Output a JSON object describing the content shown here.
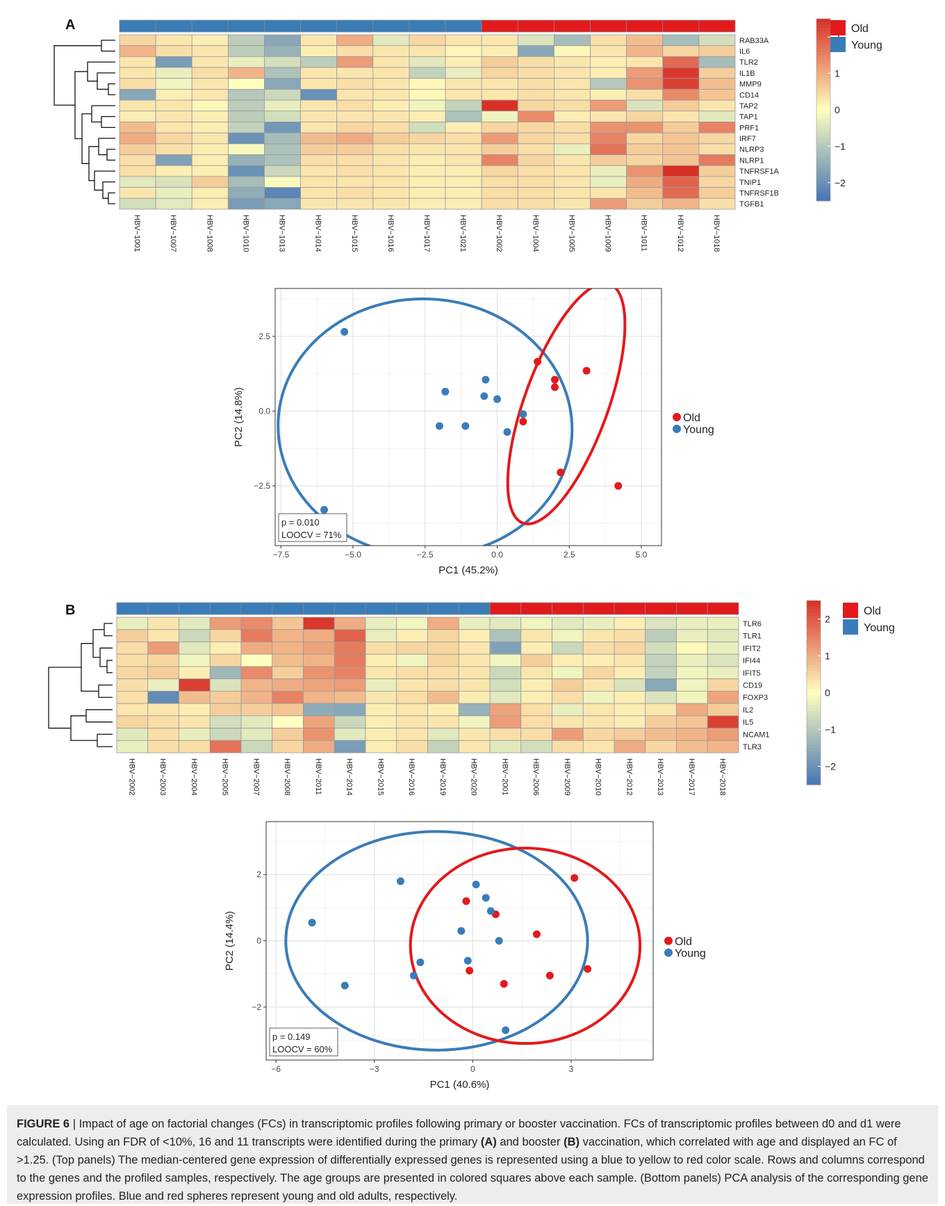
{
  "figure": {
    "panelA_label": "A",
    "panelB_label": "B",
    "legend_old": "Old",
    "legend_young": "Young",
    "colors": {
      "old": "#e31a1c",
      "young": "#3a7cb8"
    }
  },
  "caption": {
    "figure_label": "FIGURE 6",
    "text_1": " | Impact of age on factorial changes (FCs) in transcriptomic profiles following primary or booster vaccination. FCs of transcriptomic profiles between d0 and d1 were calculated. Using an FDR of <10%, 16 and 11 transcripts were identified during the primary ",
    "bold_A": "(A)",
    "text_2": " and booster ",
    "bold_B": "(B)",
    "text_3": " vaccination, which correlated with age and displayed an FC of >1.25. (Top panels) The median-centered gene expression of differentially expressed genes is represented using a blue to yellow to red color scale. Rows and columns correspond to the genes and the profiled samples, respectively. The age groups are presented in colored squares above each sample. (Bottom panels) PCA analysis of the corresponding gene expression profiles. Blue and red spheres represent young and old adults, respectively."
  },
  "chart_data": [
    {
      "type": "heatmap",
      "panel": "A",
      "columns": [
        "HBV−1001",
        "HBV−1007",
        "HBV−1008",
        "HBV−1010",
        "HBV−1013",
        "HBV−1014",
        "HBV−1015",
        "HBV−1016",
        "HBV−1017",
        "HBV−1021",
        "HBV−1002",
        "HBV−1004",
        "HBV−1005",
        "HBV−1009",
        "HBV−1011",
        "HBV−1012",
        "HBV−1018"
      ],
      "groups": [
        "Young",
        "Young",
        "Young",
        "Young",
        "Young",
        "Young",
        "Young",
        "Young",
        "Young",
        "Young",
        "Old",
        "Old",
        "Old",
        "Old",
        "Old",
        "Old",
        "Old"
      ],
      "rows": [
        "RAB33A",
        "IL6",
        "TLR2",
        "IL1B",
        "MMP9",
        "CD14",
        "TAP2",
        "TAP1",
        "PRF1",
        "IRF7",
        "NLRP3",
        "NLRP1",
        "TNFRSF1A",
        "TNIP1",
        "TNFRSF1B",
        "TGFB1"
      ],
      "values": [
        [
          0.5,
          0.3,
          0.2,
          -0.9,
          -1.6,
          0.3,
          1.0,
          -0.4,
          0.5,
          0.3,
          0.3,
          -0.5,
          -1.2,
          0.4,
          0.8,
          -1.2,
          -0.6
        ],
        [
          0.9,
          0.4,
          0.3,
          -0.9,
          -1.4,
          0.2,
          0.4,
          0.3,
          0.3,
          0.1,
          0.2,
          -1.6,
          0.1,
          0.3,
          0.9,
          0.5,
          0.6
        ],
        [
          0.3,
          -1.8,
          0.3,
          -0.3,
          -0.6,
          -0.9,
          1.2,
          0.3,
          -0.4,
          0.2,
          0.6,
          0.4,
          0.3,
          0.2,
          0.3,
          1.8,
          -1.2
        ],
        [
          0.3,
          -0.3,
          0.4,
          0.9,
          -1.1,
          0.3,
          0.3,
          0.3,
          -0.8,
          -0.3,
          0.5,
          0.4,
          0.3,
          0.2,
          1.2,
          2.4,
          0.6
        ],
        [
          0.4,
          -0.2,
          0.3,
          0.0,
          -1.6,
          0.3,
          0.4,
          0.3,
          0.1,
          0.3,
          0.3,
          0.4,
          0.3,
          -1.0,
          1.3,
          2.3,
          0.8
        ],
        [
          -1.6,
          0.2,
          0.3,
          -1.0,
          -0.7,
          -2.0,
          0.3,
          0.3,
          0.1,
          0.3,
          0.3,
          0.4,
          0.3,
          0.2,
          0.4,
          1.4,
          0.7
        ],
        [
          0.3,
          0.3,
          0.1,
          -0.9,
          -0.3,
          0.3,
          0.4,
          0.2,
          -0.2,
          -0.8,
          2.6,
          0.5,
          0.4,
          1.2,
          -0.5,
          0.6,
          0.3
        ],
        [
          0.2,
          0.3,
          0.2,
          -0.9,
          -0.6,
          0.3,
          0.3,
          0.3,
          0.2,
          -1.1,
          -0.2,
          1.4,
          0.2,
          0.3,
          0.5,
          0.3,
          -0.4
        ],
        [
          0.8,
          0.3,
          0.2,
          -0.8,
          -1.9,
          0.3,
          0.5,
          0.4,
          -0.6,
          0.2,
          0.5,
          0.5,
          0.4,
          1.3,
          1.3,
          0.6,
          1.5
        ],
        [
          1.0,
          0.5,
          0.3,
          -2.0,
          -1.2,
          0.8,
          1.0,
          0.6,
          0.5,
          0.4,
          1.2,
          0.5,
          0.4,
          1.5,
          0.5,
          0.7,
          0.5
        ],
        [
          0.6,
          0.4,
          0.2,
          -0.1,
          -1.1,
          0.6,
          0.6,
          0.4,
          0.3,
          0.3,
          0.6,
          0.4,
          -0.3,
          1.7,
          0.6,
          0.7,
          0.4
        ],
        [
          0.4,
          -1.7,
          0.2,
          -1.4,
          -1.1,
          0.4,
          0.4,
          0.3,
          0.2,
          0.3,
          1.5,
          0.5,
          0.3,
          0.6,
          0.5,
          0.7,
          1.6
        ],
        [
          0.4,
          0.2,
          0.2,
          -2.0,
          -0.7,
          0.3,
          0.4,
          0.3,
          0.2,
          0.2,
          0.5,
          0.4,
          0.3,
          -0.3,
          1.3,
          2.6,
          0.6
        ],
        [
          -0.4,
          -0.5,
          0.6,
          -1.2,
          -0.1,
          0.3,
          0.3,
          0.3,
          0.2,
          0.2,
          0.4,
          0.4,
          0.3,
          -0.3,
          1.0,
          1.9,
          0.5
        ],
        [
          0.3,
          -0.3,
          0.2,
          -1.5,
          -2.2,
          0.3,
          0.4,
          0.3,
          0.2,
          0.2,
          0.4,
          0.4,
          0.3,
          0.3,
          0.8,
          1.8,
          0.6
        ],
        [
          -0.6,
          -0.4,
          0.2,
          -1.8,
          -1.6,
          0.3,
          0.3,
          0.3,
          0.2,
          0.2,
          0.4,
          0.4,
          0.3,
          1.2,
          0.6,
          0.9,
          0.4
        ]
      ],
      "color_scale": {
        "min": -2.5,
        "max": 2.5,
        "ticks": [
          2,
          1,
          0,
          -1,
          -2
        ],
        "low": "#4575b4",
        "mid": "#ffffbf",
        "high": "#d73027"
      }
    },
    {
      "type": "scatter",
      "panel": "A-PCA",
      "xlabel": "PC1 (45.2%)",
      "ylabel": "PC2 (14.8%)",
      "xlim": [
        -7.7,
        5.7
      ],
      "ylim": [
        -4.5,
        4.1
      ],
      "xticks": [
        -7.5,
        -5.0,
        -2.5,
        0.0,
        2.5,
        5.0
      ],
      "yticks": [
        2.5,
        0.0,
        -2.5
      ],
      "xtick_labels": [
        "−7.5",
        "−5.0",
        "−2.5",
        "0.0",
        "2.5",
        "5.0"
      ],
      "ytick_labels": [
        "2.5",
        "0.0",
        "−2.5"
      ],
      "grid": true,
      "legend_position": "right",
      "series": [
        {
          "name": "Old",
          "color": "#e31a1c",
          "points": [
            [
              1.4,
              1.65
            ],
            [
              2.0,
              1.05
            ],
            [
              2.0,
              0.8
            ],
            [
              3.1,
              1.35
            ],
            [
              0.9,
              -0.35
            ],
            [
              2.2,
              -2.05
            ],
            [
              4.2,
              -2.5
            ]
          ]
        },
        {
          "name": "Young",
          "color": "#3a7cb8",
          "points": [
            [
              -5.3,
              2.65
            ],
            [
              -1.8,
              0.65
            ],
            [
              -0.4,
              1.05
            ],
            [
              -0.45,
              0.5
            ],
            [
              0.0,
              0.4
            ],
            [
              0.9,
              -0.1
            ],
            [
              0.35,
              -0.7
            ],
            [
              -1.1,
              -0.5
            ],
            [
              -2.0,
              -0.5
            ],
            [
              -6.0,
              -3.3
            ]
          ]
        }
      ],
      "ellipses": [
        {
          "group": "Young",
          "cx": -2.5,
          "cy": -0.55,
          "rx": 5.1,
          "ry": 4.3,
          "angle_deg": 3
        },
        {
          "group": "Old",
          "cx": 2.4,
          "cy": 0.25,
          "rx": 1.45,
          "ry": 4.25,
          "angle_deg": 20
        }
      ],
      "annotation_p": "p = 0.010",
      "annotation_loocv": "LOOCV = 71%"
    },
    {
      "type": "heatmap",
      "panel": "B",
      "columns": [
        "HBV−2002",
        "HBV−2003",
        "HBV−2004",
        "HBV−2005",
        "HBV−2007",
        "HBV−2008",
        "HBV−2011",
        "HBV−2014",
        "HBV−2015",
        "HBV−2016",
        "HBV−2019",
        "HBV−2020",
        "HBV−2001",
        "HBV−2006",
        "HBV−2009",
        "HBV−2010",
        "HBV−2012",
        "HBV−2013",
        "HBV−2017",
        "HBV−2018"
      ],
      "groups": [
        "Young",
        "Young",
        "Young",
        "Young",
        "Young",
        "Young",
        "Young",
        "Young",
        "Young",
        "Young",
        "Young",
        "Young",
        "Old",
        "Old",
        "Old",
        "Old",
        "Old",
        "Old",
        "Old",
        "Old"
      ],
      "rows": [
        "TLR6",
        "TLR1",
        "IFIT2",
        "IFI44",
        "IFIT5",
        "CD19",
        "FOXP3",
        "IL2",
        "IL5",
        "NCAM1",
        "TLR3"
      ],
      "values": [
        [
          -0.3,
          0.3,
          -0.4,
          1.2,
          1.4,
          0.7,
          2.4,
          1.0,
          -0.3,
          -0.2,
          1.0,
          -0.3,
          -0.4,
          -0.2,
          -0.4,
          -0.3,
          0.2,
          -0.5,
          -0.3,
          -0.3
        ],
        [
          0.6,
          0.3,
          -0.7,
          0.5,
          1.6,
          0.9,
          1.0,
          1.9,
          -0.3,
          0.2,
          0.5,
          0.2,
          -1.1,
          0.3,
          -0.2,
          0.3,
          0.4,
          -0.9,
          -0.3,
          -0.4
        ],
        [
          0.4,
          1.2,
          -0.4,
          0.2,
          1.0,
          0.9,
          1.1,
          1.6,
          0.4,
          0.5,
          0.5,
          0.3,
          -1.7,
          0.2,
          -0.7,
          0.4,
          0.5,
          -0.6,
          0.1,
          -0.3
        ],
        [
          0.4,
          0.5,
          -0.2,
          0.5,
          0.0,
          0.8,
          0.9,
          1.6,
          0.2,
          -0.2,
          0.5,
          0.3,
          -0.2,
          0.6,
          0.2,
          0.2,
          0.3,
          -0.8,
          -0.3,
          -0.5
        ],
        [
          0.5,
          0.6,
          0.2,
          -1.3,
          1.4,
          0.6,
          1.3,
          1.5,
          0.3,
          0.4,
          0.4,
          0.3,
          -0.7,
          0.3,
          -0.2,
          0.5,
          0.2,
          -0.8,
          -0.2,
          -0.3
        ],
        [
          0.4,
          -0.3,
          2.3,
          -0.5,
          0.9,
          1.0,
          1.1,
          1.2,
          -0.3,
          0.3,
          0.4,
          0.3,
          -0.6,
          0.2,
          0.6,
          0.3,
          -0.5,
          -1.6,
          -0.2,
          0.5
        ],
        [
          0.4,
          -2.1,
          0.8,
          0.6,
          0.9,
          1.5,
          0.9,
          0.8,
          0.3,
          0.4,
          0.8,
          0.2,
          -0.4,
          0.2,
          0.4,
          -0.2,
          0.2,
          -0.5,
          -0.2,
          1.1
        ],
        [
          0.3,
          0.3,
          0.2,
          0.6,
          0.6,
          0.7,
          -1.5,
          -1.6,
          0.2,
          0.3,
          0.2,
          -1.4,
          1.1,
          0.4,
          -0.3,
          0.3,
          0.2,
          0.3,
          1.0,
          0.6
        ],
        [
          0.5,
          0.4,
          0.3,
          -0.6,
          -0.4,
          0.0,
          1.1,
          -0.7,
          0.2,
          0.3,
          0.3,
          -0.2,
          1.2,
          0.4,
          0.3,
          0.3,
          0.2,
          0.6,
          0.7,
          2.3
        ],
        [
          -0.4,
          0.4,
          -0.3,
          -0.7,
          -0.4,
          0.6,
          1.3,
          -0.4,
          0.2,
          0.3,
          -0.4,
          0.3,
          0.4,
          0.4,
          1.2,
          0.5,
          0.6,
          0.8,
          0.9,
          1.2
        ],
        [
          -0.3,
          0.4,
          0.4,
          1.7,
          -0.7,
          0.5,
          1.0,
          -1.8,
          0.2,
          0.4,
          -0.8,
          0.3,
          -0.4,
          -0.6,
          0.4,
          0.3,
          1.0,
          0.5,
          0.8,
          0.9
        ]
      ],
      "color_scale": {
        "min": -2.5,
        "max": 2.5,
        "ticks": [
          2,
          1,
          0,
          -1,
          -2
        ],
        "low": "#4575b4",
        "mid": "#ffffbf",
        "high": "#d73027"
      }
    },
    {
      "type": "scatter",
      "panel": "B-PCA",
      "xlabel": "PC1 (40.6%)",
      "ylabel": "PC2 (14.4%)",
      "xlim": [
        -6.3,
        5.5
      ],
      "ylim": [
        -3.6,
        3.6
      ],
      "xticks": [
        -6,
        -3,
        0,
        3
      ],
      "yticks": [
        2,
        0,
        -2
      ],
      "xtick_labels": [
        "−6",
        "−3",
        "0",
        "3"
      ],
      "ytick_labels": [
        "2",
        "0",
        "−2"
      ],
      "grid": true,
      "legend_position": "right",
      "series": [
        {
          "name": "Old",
          "color": "#e31a1c",
          "points": [
            [
              -0.2,
              1.2
            ],
            [
              0.7,
              0.8
            ],
            [
              1.95,
              0.2
            ],
            [
              3.1,
              1.9
            ],
            [
              -0.1,
              -0.9
            ],
            [
              0.95,
              -1.3
            ],
            [
              2.35,
              -1.05
            ],
            [
              3.5,
              -0.85
            ]
          ]
        },
        {
          "name": "Young",
          "color": "#3a7cb8",
          "points": [
            [
              -2.2,
              1.8
            ],
            [
              -4.9,
              0.55
            ],
            [
              -3.9,
              -1.35
            ],
            [
              0.1,
              1.7
            ],
            [
              0.4,
              1.3
            ],
            [
              0.55,
              0.9
            ],
            [
              -0.35,
              0.3
            ],
            [
              0.8,
              0.0
            ],
            [
              -1.6,
              -0.65
            ],
            [
              -0.15,
              -0.6
            ],
            [
              -1.8,
              -1.05
            ],
            [
              1.0,
              -2.7
            ]
          ]
        }
      ],
      "ellipses": [
        {
          "group": "Young",
          "cx": -1.1,
          "cy": 0.0,
          "rx": 4.6,
          "ry": 3.3,
          "angle_deg": 0
        },
        {
          "group": "Old",
          "cx": 1.6,
          "cy": -0.15,
          "rx": 3.5,
          "ry": 2.95,
          "angle_deg": 0
        }
      ],
      "annotation_p": "p = 0.149",
      "annotation_loocv": "LOOCV = 60%"
    }
  ]
}
